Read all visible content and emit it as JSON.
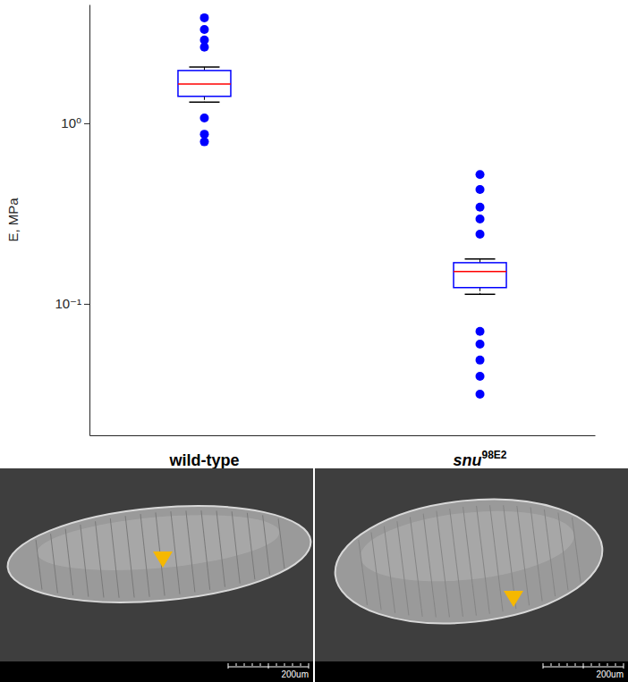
{
  "chart_data": {
    "type": "box",
    "y_label": "E, MPa",
    "categories": [
      "wild-type",
      "snu98E2"
    ],
    "boxes": [
      {
        "whisker_low": 1.31,
        "q1": 1.41,
        "median": 1.65,
        "q3": 1.96,
        "whisker_high": 2.05,
        "outliers": [
          3.84,
          3.31,
          2.89,
          2.64,
          1.07,
          0.87,
          0.79
        ]
      },
      {
        "whisker_low": 0.113,
        "q1": 0.123,
        "median": 0.151,
        "q3": 0.169,
        "whisker_high": 0.177,
        "outliers": [
          0.52,
          0.43,
          0.343,
          0.295,
          0.243,
          0.0703,
          0.0598,
          0.0488,
          0.0397,
          0.0316
        ]
      }
    ],
    "log": "y",
    "ylim": [
      0.0187,
      4.55
    ],
    "yticks": [
      {
        "value": 1,
        "label": "10⁰"
      },
      {
        "value": 0.1,
        "label": "10⁻¹"
      }
    ],
    "color": "#0000ff",
    "grid": false
  },
  "images": [
    {
      "scale_label": "200um"
    },
    {
      "scale_label": "200um"
    }
  ]
}
